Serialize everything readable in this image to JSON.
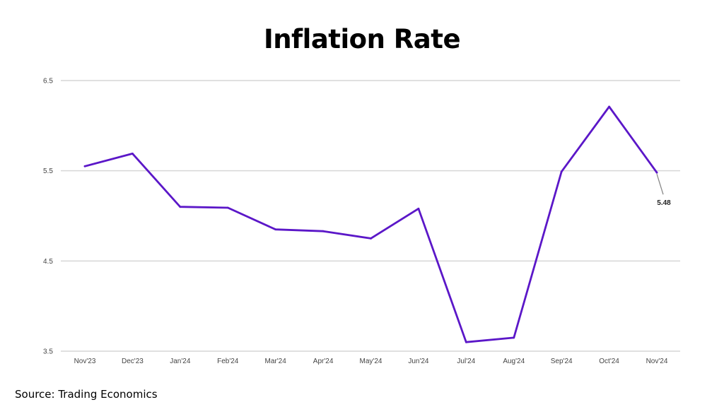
{
  "title": "Inflation Rate",
  "source": "Source: Trading Economics",
  "colors": {
    "line": "#5b17c8",
    "grid": "#d6d6d6",
    "leader": "#888888"
  },
  "chart_data": {
    "type": "line",
    "title": "Inflation Rate",
    "xlabel": "",
    "ylabel": "",
    "categories": [
      "Nov'23",
      "Dec'23",
      "Jan'24",
      "Feb'24",
      "Mar'24",
      "Apr'24",
      "May'24",
      "Jun'24",
      "Jul'24",
      "Aug'24",
      "Sep'24",
      "Oct'24",
      "Nov'24"
    ],
    "series": [
      {
        "values": [
          5.55,
          5.69,
          5.1,
          5.09,
          4.85,
          4.83,
          4.75,
          5.08,
          3.6,
          3.65,
          5.49,
          6.21,
          5.48
        ]
      }
    ],
    "ylim": [
      3.5,
      6.5
    ],
    "yticks": [
      "3.5",
      "4.5",
      "5.5",
      "6.5"
    ],
    "ytick_values": [
      3.5,
      4.5,
      5.5,
      6.5
    ],
    "grid": true,
    "legend": "none",
    "annotations": [
      {
        "category": "Nov'24",
        "text": "5.48"
      }
    ]
  }
}
